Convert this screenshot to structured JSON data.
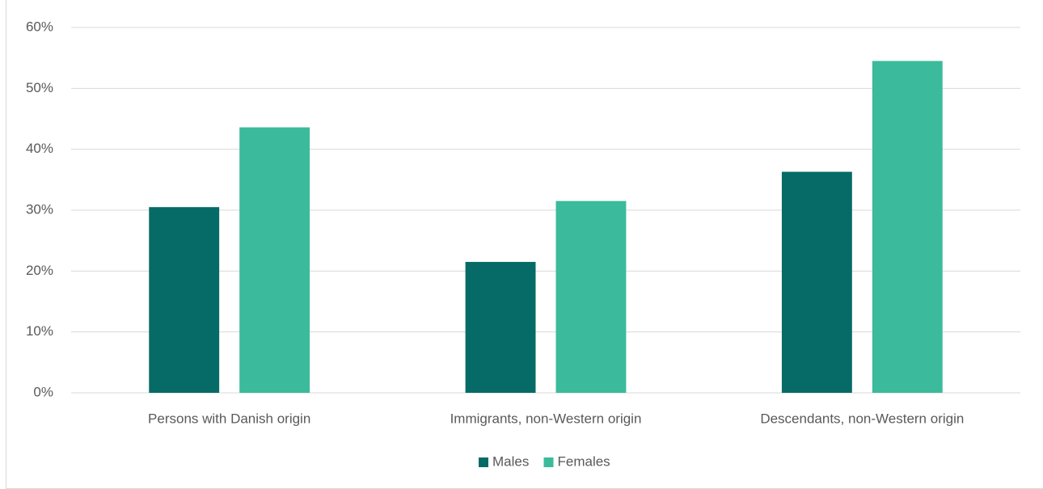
{
  "chart_data": {
    "type": "bar",
    "categories": [
      "Persons with Danish origin",
      "Immigrants, non-Western origin",
      "Descendants, non-Western origin"
    ],
    "series": [
      {
        "name": "Males",
        "color": "#066b66",
        "values": [
          30.5,
          21.5,
          36.3
        ]
      },
      {
        "name": "Females",
        "color": "#3bbb9b",
        "values": [
          43.6,
          31.5,
          54.5
        ]
      }
    ],
    "ylim": [
      0,
      60
    ],
    "yticks": [
      {
        "value": 0,
        "label": "0%"
      },
      {
        "value": 10,
        "label": "10%"
      },
      {
        "value": 20,
        "label": "20%"
      },
      {
        "value": 30,
        "label": "30%"
      },
      {
        "value": 40,
        "label": "40%"
      },
      {
        "value": 50,
        "label": "50%"
      },
      {
        "value": 60,
        "label": "60%"
      }
    ],
    "grid": true,
    "legend": "bottom"
  }
}
